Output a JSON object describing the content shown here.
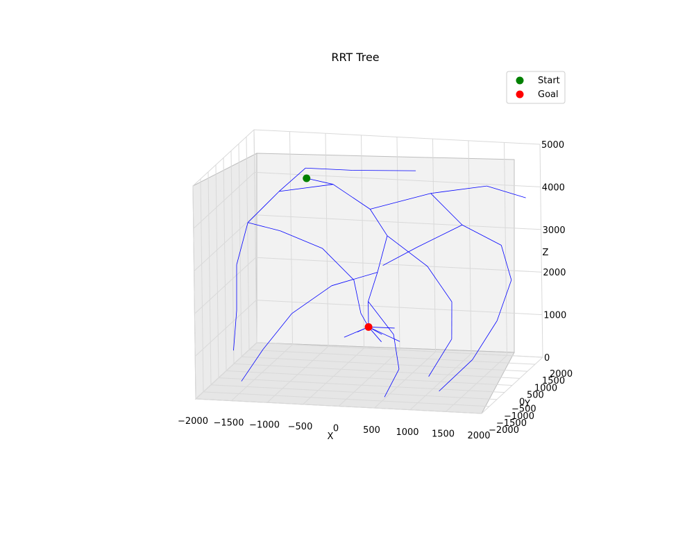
{
  "chart_data": {
    "type": "line",
    "subtype": "3d-tree",
    "title": "RRT Tree",
    "xlabel": "X",
    "ylabel": "Y",
    "zlabel": "Z",
    "xlim": [
      -2000,
      2000
    ],
    "ylim": [
      -2000,
      2000
    ],
    "zlim": [
      0,
      5000
    ],
    "x_ticks": [
      "−2000",
      "−1500",
      "−1000",
      "−500",
      "0",
      "500",
      "1000",
      "1500",
      "2000"
    ],
    "y_ticks": [
      "−2000",
      "−1500",
      "−1000",
      "−500",
      "0",
      "500",
      "1000",
      "1500",
      "2000"
    ],
    "z_ticks": [
      "0",
      "1000",
      "2000",
      "3000",
      "4000",
      "5000"
    ],
    "grid": true,
    "legend_position": "top-right",
    "colors": {
      "tree": "#0000ff",
      "start": "#008000",
      "goal": "#ff0000",
      "pane": "#f2f2f2",
      "grid": "#d9d9d9"
    },
    "series": [
      {
        "name": "Start",
        "marker": "circle",
        "color": "#008000",
        "point": {
          "x": -1100,
          "y": 1200,
          "z": 4200
        }
      },
      {
        "name": "Goal",
        "marker": "circle",
        "color": "#ff0000",
        "point": {
          "x": 0,
          "y": 0,
          "z": 1200
        }
      }
    ],
    "tree_edges": [
      [
        [
          -1100,
          1200,
          4200
        ],
        [
          -600,
          600,
          4300
        ]
      ],
      [
        [
          -600,
          600,
          4300
        ],
        [
          0,
          200,
          3900
        ]
      ],
      [
        [
          0,
          200,
          3900
        ],
        [
          300,
          -100,
          3400
        ]
      ],
      [
        [
          300,
          -100,
          3400
        ],
        [
          200,
          -300,
          2600
        ]
      ],
      [
        [
          200,
          -300,
          2600
        ],
        [
          0,
          0,
          1800
        ]
      ],
      [
        [
          0,
          0,
          1800
        ],
        [
          0,
          0,
          1200
        ]
      ],
      [
        [
          -600,
          600,
          4300
        ],
        [
          -1400,
          800,
          4000
        ]
      ],
      [
        [
          -1400,
          800,
          4000
        ],
        [
          -1800,
          600,
          3300
        ]
      ],
      [
        [
          -1800,
          600,
          3300
        ],
        [
          -1900,
          300,
          2400
        ]
      ],
      [
        [
          -1900,
          300,
          2400
        ],
        [
          -1800,
          -200,
          1500
        ]
      ],
      [
        [
          -1800,
          -200,
          1500
        ],
        [
          -1700,
          -900,
          800
        ]
      ],
      [
        [
          0,
          200,
          3900
        ],
        [
          700,
          900,
          4100
        ]
      ],
      [
        [
          700,
          900,
          4100
        ],
        [
          1400,
          1300,
          4200
        ]
      ],
      [
        [
          1400,
          1300,
          4200
        ],
        [
          1900,
          1500,
          3900
        ]
      ],
      [
        [
          700,
          900,
          4100
        ],
        [
          1200,
          600,
          3500
        ]
      ],
      [
        [
          1200,
          600,
          3500
        ],
        [
          1700,
          800,
          3000
        ]
      ],
      [
        [
          1700,
          800,
          3000
        ],
        [
          1900,
          500,
          2300
        ]
      ],
      [
        [
          1900,
          500,
          2300
        ],
        [
          1800,
          0,
          1500
        ]
      ],
      [
        [
          1800,
          0,
          1500
        ],
        [
          1600,
          -700,
          800
        ]
      ],
      [
        [
          1600,
          -700,
          800
        ],
        [
          1300,
          -1500,
          300
        ]
      ],
      [
        [
          300,
          -100,
          3400
        ],
        [
          900,
          -300,
          2800
        ]
      ],
      [
        [
          900,
          -300,
          2800
        ],
        [
          1300,
          -600,
          2100
        ]
      ],
      [
        [
          1300,
          -600,
          2100
        ],
        [
          1400,
          -1100,
          1400
        ]
      ],
      [
        [
          1400,
          -1100,
          1400
        ],
        [
          1200,
          -1700,
          700
        ]
      ],
      [
        [
          200,
          -300,
          2600
        ],
        [
          -400,
          -500,
          2300
        ]
      ],
      [
        [
          -400,
          -500,
          2300
        ],
        [
          -900,
          -800,
          1700
        ]
      ],
      [
        [
          -900,
          -800,
          1700
        ],
        [
          -1200,
          -1300,
          1000
        ]
      ],
      [
        [
          -1200,
          -1300,
          1000
        ],
        [
          -1400,
          -1800,
          400
        ]
      ],
      [
        [
          0,
          0,
          1800
        ],
        [
          500,
          -700,
          1300
        ]
      ],
      [
        [
          500,
          -700,
          1300
        ],
        [
          700,
          -1300,
          700
        ]
      ],
      [
        [
          700,
          -1300,
          700
        ],
        [
          600,
          -1800,
          200
        ]
      ],
      [
        [
          -1400,
          800,
          4000
        ],
        [
          -1200,
          1600,
          4300
        ]
      ],
      [
        [
          -1200,
          1600,
          4300
        ],
        [
          -600,
          1900,
          4200
        ]
      ],
      [
        [
          -600,
          1900,
          4200
        ],
        [
          300,
          1800,
          4300
        ]
      ],
      [
        [
          -1800,
          600,
          3300
        ],
        [
          -1500,
          1300,
          2900
        ]
      ],
      [
        [
          -1500,
          1300,
          2900
        ],
        [
          -1000,
          1700,
          2400
        ]
      ],
      [
        [
          -1000,
          1700,
          2400
        ],
        [
          -500,
          1400,
          1800
        ]
      ],
      [
        [
          -500,
          1400,
          1800
        ],
        [
          -300,
          900,
          1200
        ]
      ],
      [
        [
          -300,
          900,
          1200
        ],
        [
          0,
          0,
          1200
        ]
      ],
      [
        [
          1200,
          600,
          3500
        ],
        [
          800,
          1500,
          3000
        ]
      ],
      [
        [
          800,
          1500,
          3000
        ],
        [
          300,
          1800,
          2500
        ]
      ],
      [
        [
          300,
          1800,
          2500
        ],
        [
          -200,
          1900,
          2000
        ]
      ],
      [
        [
          0,
          0,
          1200
        ],
        [
          200,
          -100,
          900
        ]
      ],
      [
        [
          0,
          0,
          1200
        ],
        [
          -200,
          200,
          1000
        ]
      ],
      [
        [
          0,
          0,
          1200
        ],
        [
          300,
          300,
          1100
        ]
      ],
      [
        [
          0,
          0,
          1200
        ],
        [
          -300,
          -200,
          1000
        ]
      ],
      [
        [
          0,
          0,
          1200
        ],
        [
          500,
          -300,
          1000
        ]
      ],
      [
        [
          0,
          0,
          1200
        ],
        [
          100,
          400,
          900
        ]
      ]
    ]
  }
}
